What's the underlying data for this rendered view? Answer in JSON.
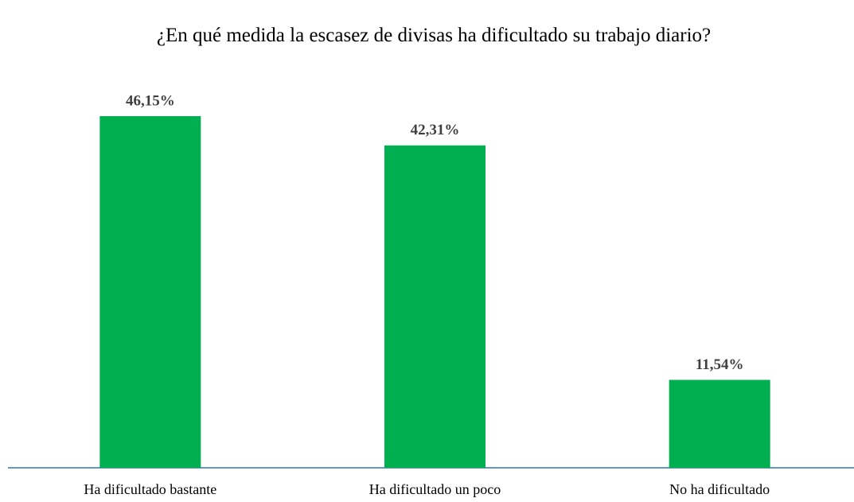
{
  "chart_data": {
    "type": "bar",
    "title": "¿En qué medida la escasez de divisas ha dificultado su trabajo diario?",
    "categories": [
      "Ha dificultado bastante",
      "Ha dificultado un poco",
      "No ha dificultado"
    ],
    "values": [
      46.15,
      42.31,
      11.54
    ],
    "value_labels": [
      "46,15%",
      "42,31%",
      "11,54%"
    ],
    "color": "#00b050"
  }
}
